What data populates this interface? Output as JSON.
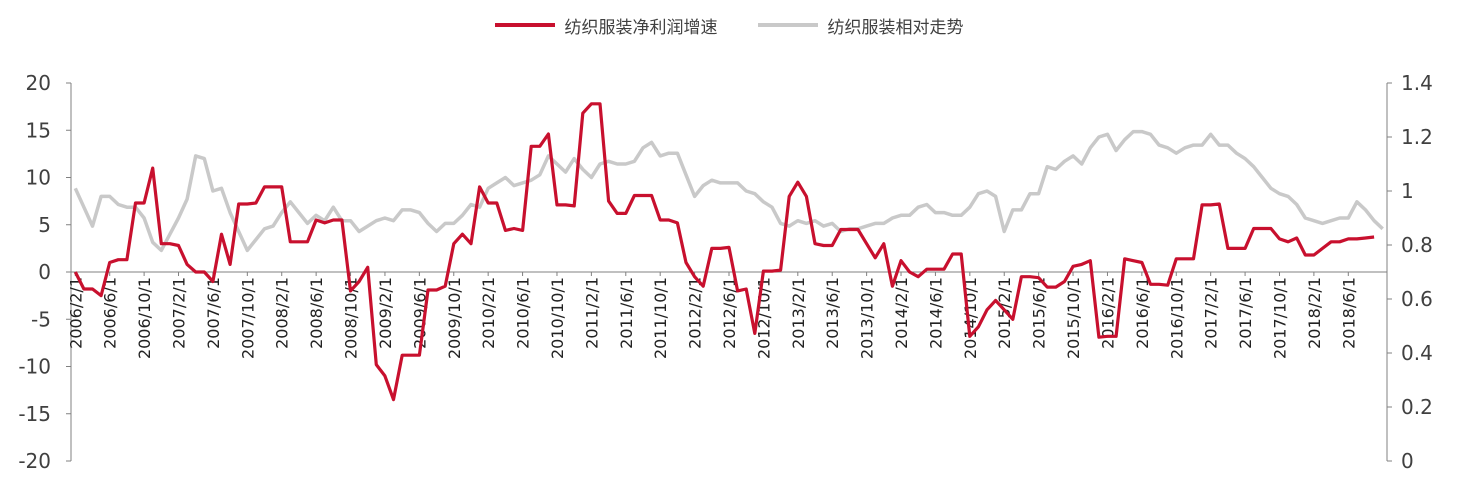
{
  "chart_data": {
    "type": "line",
    "legend": [
      "纺织服装净利润增速",
      "纺织服装相对走势"
    ],
    "legend_position": "top-center",
    "grid": false,
    "y_left": {
      "min": -20,
      "max": 20,
      "ticks": [
        20,
        15,
        10,
        5,
        0,
        -5,
        -10,
        -15,
        -20
      ]
    },
    "y_right": {
      "min": 0,
      "max": 1.4,
      "ticks": [
        "1.4",
        "1.2",
        "1",
        "0.8",
        "0.6",
        "0.4",
        "0.2",
        "0"
      ]
    },
    "x_start": "2006-02",
    "x_tick_labels": [
      "2006/2/1",
      "2006/6/1",
      "2006/10/1",
      "2007/2/1",
      "2007/6/1",
      "2007/10/1",
      "2008/2/1",
      "2008/6/1",
      "2008/10/1",
      "2009/2/1",
      "2009/6/1",
      "2009/10/1",
      "2010/2/1",
      "2010/6/1",
      "2010/10/1",
      "2011/2/1",
      "2011/6/1",
      "2011/10/1",
      "2012/2/1",
      "2012/6/1",
      "2012/10/1",
      "2013/2/1",
      "2013/6/1",
      "2013/10/1",
      "2014/2/1",
      "2014/6/1",
      "2014/10/1",
      "2015/2/1",
      "2015/6/1",
      "2015/10/1",
      "2016/2/1",
      "2016/6/1",
      "2016/10/1",
      "2017/2/1",
      "2017/6/1",
      "2017/10/1",
      "2018/2/1",
      "2018/6/1"
    ],
    "series": [
      {
        "name": "纺织服装净利润增速",
        "axis": "left",
        "color": "#c8102e",
        "values": [
          0,
          -1.8,
          -1.8,
          -2.5,
          1,
          1.3,
          1.3,
          7.3,
          7.3,
          11,
          3,
          3,
          2.8,
          0.8,
          0,
          0,
          -1,
          4,
          0.8,
          7.2,
          7.2,
          7.3,
          9,
          9,
          9,
          3.2,
          3.2,
          3.2,
          5.5,
          5.2,
          5.5,
          5.5,
          -2,
          -1,
          0.5,
          -9.8,
          -11,
          -13.5,
          -8.8,
          -8.8,
          -8.8,
          -1.9,
          -1.9,
          -1.5,
          3,
          4,
          3,
          9,
          7.3,
          7.3,
          4.4,
          4.6,
          4.4,
          13.3,
          13.3,
          14.6,
          7.1,
          7.1,
          7,
          16.8,
          17.8,
          17.8,
          7.5,
          6.2,
          6.2,
          8.1,
          8.1,
          8.1,
          5.5,
          5.5,
          5.2,
          1,
          -0.5,
          -1.5,
          2.5,
          2.5,
          2.6,
          -2,
          -1.8,
          -6.5,
          0.1,
          0.1,
          0.2,
          8,
          9.5,
          8,
          3,
          2.8,
          2.8,
          4.5,
          4.5,
          4.5,
          3,
          1.5,
          3,
          -1.5,
          1.2,
          0,
          -0.5,
          0.3,
          0.3,
          0.3,
          1.9,
          1.9,
          -6.8,
          -5.8,
          -4,
          -3,
          -4,
          -5,
          -0.5,
          -0.5,
          -0.6,
          -1.6,
          -1.6,
          -1,
          0.6,
          0.8,
          1.2,
          -6.9,
          -6.8,
          -6.8,
          1.4,
          1.2,
          1,
          -1.3,
          -1.3,
          -1.4,
          1.4,
          1.4,
          1.4,
          7.1,
          7.1,
          7.2,
          2.5,
          2.5,
          2.5,
          4.6,
          4.6,
          4.6,
          3.5,
          3.2,
          3.6,
          1.8,
          1.8,
          2.5,
          3.2,
          3.2,
          3.5,
          3.5,
          3.6,
          3.7
        ]
      },
      {
        "name": "纺织服装相对走势",
        "axis": "right",
        "color": "#c9c9c9",
        "values": [
          1.01,
          0.94,
          0.87,
          0.98,
          0.98,
          0.95,
          0.94,
          0.94,
          0.9,
          0.81,
          0.78,
          0.84,
          0.9,
          0.97,
          1.13,
          1.12,
          1,
          1.01,
          0.92,
          0.85,
          0.78,
          0.82,
          0.86,
          0.87,
          0.92,
          0.96,
          0.92,
          0.88,
          0.91,
          0.89,
          0.94,
          0.89,
          0.89,
          0.85,
          0.87,
          0.89,
          0.9,
          0.89,
          0.93,
          0.93,
          0.92,
          0.88,
          0.85,
          0.88,
          0.88,
          0.91,
          0.95,
          0.94,
          1.01,
          1.03,
          1.05,
          1.02,
          1.03,
          1.04,
          1.06,
          1.13,
          1.1,
          1.07,
          1.12,
          1.08,
          1.05,
          1.1,
          1.11,
          1.1,
          1.1,
          1.11,
          1.16,
          1.18,
          1.13,
          1.14,
          1.14,
          1.06,
          0.98,
          1.02,
          1.04,
          1.03,
          1.03,
          1.03,
          1,
          0.99,
          0.96,
          0.94,
          0.88,
          0.87,
          0.89,
          0.88,
          0.89,
          0.87,
          0.88,
          0.85,
          0.86,
          0.86,
          0.87,
          0.88,
          0.88,
          0.9,
          0.91,
          0.91,
          0.94,
          0.95,
          0.92,
          0.92,
          0.91,
          0.91,
          0.94,
          0.99,
          1,
          0.98,
          0.85,
          0.93,
          0.93,
          0.99,
          0.99,
          1.09,
          1.08,
          1.11,
          1.13,
          1.1,
          1.16,
          1.2,
          1.21,
          1.15,
          1.19,
          1.22,
          1.22,
          1.21,
          1.17,
          1.16,
          1.14,
          1.16,
          1.17,
          1.17,
          1.21,
          1.17,
          1.17,
          1.14,
          1.12,
          1.09,
          1.05,
          1.01,
          0.99,
          0.98,
          0.95,
          0.9,
          0.89,
          0.88,
          0.89,
          0.9,
          0.9,
          0.96,
          0.93,
          0.89,
          0.86
        ]
      }
    ]
  }
}
